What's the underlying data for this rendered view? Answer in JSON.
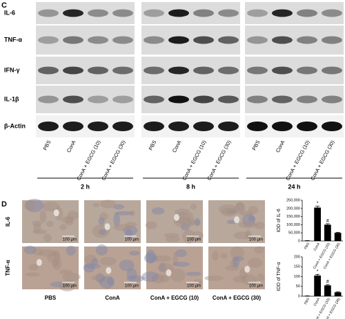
{
  "panel_c": {
    "label": "C",
    "rows": [
      "IL-6",
      "TNF-α",
      "IFN-γ",
      "IL-1β",
      "β-Actin"
    ],
    "lanes": [
      "PBS",
      "ConA",
      "ConA + EGCG (10)",
      "ConA + EGCG (30)"
    ],
    "times": [
      "2 h",
      "8 h",
      "24 h"
    ]
  },
  "panel_d": {
    "label": "D",
    "rows": [
      "IL-6",
      "TNF-α"
    ],
    "columns": [
      "PBS",
      "ConA",
      "ConA + EGCG (10)",
      "ConA + EGCG (30)"
    ],
    "scale_bar": "100 μm"
  },
  "chart_data": [
    {
      "type": "bar",
      "y_label": "IOD of IL-6",
      "categories": [
        "PBS",
        "ConA",
        "ConA + EGCG (10)",
        "ConA + EGCG (30)"
      ],
      "values": [
        2000,
        205000,
        100000,
        50000
      ],
      "errors": [
        500,
        8000,
        6000,
        3000
      ],
      "annotations": [
        null,
        "*",
        "#",
        null
      ],
      "color": "#000000",
      "ylim": [
        0,
        250000
      ],
      "yticks": [
        0,
        {
          "value": 50000,
          "label": "50,000"
        },
        {
          "value": 100000,
          "label": "100,000"
        },
        {
          "value": 150000,
          "label": "150,000"
        },
        {
          "value": 200000,
          "label": "200,000"
        },
        {
          "value": 250000,
          "label": "250,000"
        }
      ]
    },
    {
      "type": "bar",
      "y_label": "IOD of TNF-α",
      "categories": [
        "PBS",
        "ConA",
        "ConA + EGCG (10)",
        "ConA + EGCG (30)"
      ],
      "values": [
        1,
        105,
        55,
        20
      ],
      "errors": [
        1,
        6,
        4,
        2
      ],
      "annotations": [
        null,
        "*",
        "#",
        null
      ],
      "color": "#000000",
      "ylim": [
        0,
        200
      ],
      "yticks": [
        0,
        50,
        100,
        150,
        200
      ]
    }
  ]
}
